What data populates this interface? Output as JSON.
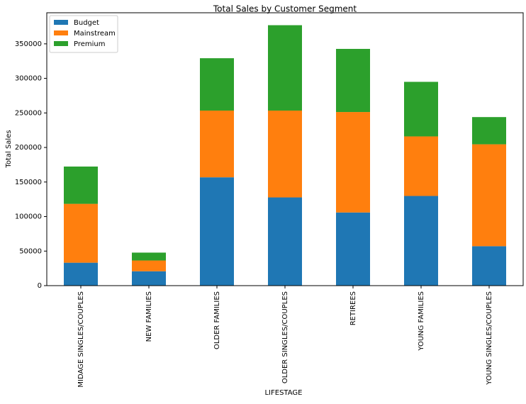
{
  "chart_data": {
    "type": "stacked_bar",
    "title": "Total Sales by Customer Segment",
    "xlabel": "LIFESTAGE",
    "ylabel": "Total Sales",
    "categories": [
      "MIDAGE SINGLES/COUPLES",
      "NEW FAMILIES",
      "OLDER FAMILIES",
      "OLDER SINGLES/COUPLES",
      "RETIREES",
      "YOUNG FAMILIES",
      "YOUNG SINGLES/COUPLES"
    ],
    "series": [
      {
        "name": "Budget",
        "color": "#1f77b4",
        "values": [
          33200,
          20800,
          156800,
          127700,
          105900,
          129800,
          57100
        ]
      },
      {
        "name": "Mainstream",
        "color": "#ff7f0e",
        "values": [
          85200,
          15600,
          96600,
          125700,
          145400,
          86200,
          147500
        ]
      },
      {
        "name": "Premium",
        "color": "#2ca02c",
        "values": [
          54000,
          11400,
          75800,
          123600,
          91400,
          79000,
          39400
        ]
      }
    ],
    "ylim": [
      0,
      395000
    ],
    "yticks": [
      0,
      50000,
      100000,
      150000,
      200000,
      250000,
      300000,
      350000
    ],
    "legend": "upper left"
  }
}
